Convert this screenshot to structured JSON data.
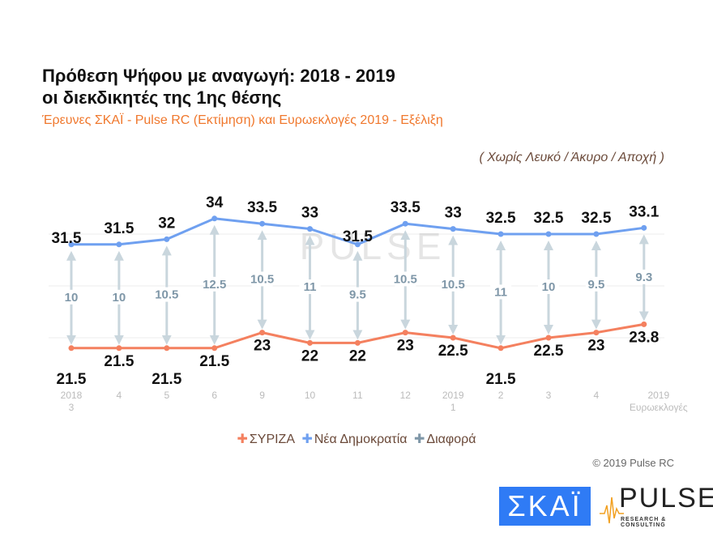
{
  "chart_data": {
    "type": "line",
    "title": "Πρόθεση Ψήφου με αναγωγή: 2018 - 2019",
    "title2": "οι διεκδικητές της 1ης θέσης",
    "subtitle": "Έρευνες ΣΚΑΪ - Pulse RC (Εκτίμηση) και Ευρωεκλογές 2019 - Εξέλιξη",
    "note": "( Χωρίς Λευκό / Άκυρο / Αποχή )",
    "categories": [
      [
        "2018",
        "3"
      ],
      [
        "4"
      ],
      [
        "5"
      ],
      [
        "6"
      ],
      [
        "9"
      ],
      [
        "10"
      ],
      [
        "11"
      ],
      [
        "12"
      ],
      [
        "2019",
        "1"
      ],
      [
        "2"
      ],
      [
        "3"
      ],
      [
        "4"
      ],
      [
        "2019",
        "Ευρωεκλογές"
      ]
    ],
    "series": [
      {
        "name": "ΣΥΡΙΖΑ",
        "color": "#f4805f",
        "values": [
          21.5,
          21.5,
          21.5,
          21.5,
          23,
          22,
          22,
          23,
          22.5,
          21.5,
          22.5,
          23,
          23.8
        ]
      },
      {
        "name": "Νέα Δημοκρατία",
        "color": "#6fa0f0",
        "values": [
          31.5,
          31.5,
          32,
          34,
          33.5,
          33,
          31.5,
          33.5,
          33,
          32.5,
          32.5,
          32.5,
          33.1
        ]
      },
      {
        "name": "Διαφορά",
        "color": "#7f97a8",
        "values": [
          10,
          10,
          10.5,
          12.5,
          10.5,
          11,
          9.5,
          10.5,
          10.5,
          11,
          10,
          9.5,
          9.3
        ]
      }
    ],
    "grid": true,
    "legend": "bottom"
  },
  "footer": {
    "copyright": "© 2019 Pulse RC",
    "logo_skai": "ΣΚΑΪ",
    "logo_pulse": "PULSE",
    "logo_pulse_sub": "RESEARCH & CONSULTING"
  }
}
